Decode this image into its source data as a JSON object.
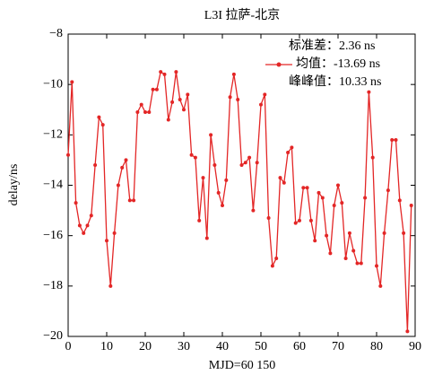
{
  "chart_data": {
    "type": "line",
    "title": "L3I 拉萨-北京",
    "x_label": "MJD=60 150",
    "y_label": "delay/ns",
    "annotations": [
      "标准差：2.36 ns",
      "均值：-13.69 ns",
      "峰峰值：10.33 ns"
    ],
    "x": [
      0,
      1,
      2,
      3,
      4,
      5,
      6,
      7,
      8,
      9,
      10,
      11,
      12,
      13,
      14,
      15,
      16,
      17,
      18,
      19,
      20,
      21,
      22,
      23,
      24,
      25,
      26,
      27,
      28,
      29,
      30,
      31,
      32,
      33,
      34,
      35,
      36,
      37,
      38,
      39,
      40,
      41,
      42,
      43,
      44,
      45,
      46,
      47,
      48,
      49,
      50,
      51,
      52,
      53,
      54,
      55,
      56,
      57,
      58,
      59,
      60,
      61,
      62,
      63,
      64,
      65,
      66,
      67,
      68,
      69,
      70,
      71,
      72,
      73,
      74,
      75,
      76,
      77,
      78,
      79,
      80,
      81,
      82,
      83,
      84,
      85,
      86,
      87,
      88,
      89
    ],
    "series": [
      {
        "color": "#e32626",
        "values": [
          -12.8,
          -9.9,
          -14.7,
          -15.6,
          -15.9,
          -15.6,
          -15.2,
          -13.2,
          -11.3,
          -11.6,
          -16.2,
          -18.0,
          -15.9,
          -14.0,
          -13.3,
          -13.0,
          -14.6,
          -14.6,
          -11.1,
          -10.8,
          -11.1,
          -11.1,
          -10.2,
          -10.2,
          -9.5,
          -9.6,
          -11.4,
          -10.7,
          -9.5,
          -10.6,
          -11.0,
          -10.4,
          -12.8,
          -12.9,
          -15.4,
          -13.7,
          -16.1,
          -12.0,
          -13.2,
          -14.3,
          -14.8,
          -13.8,
          -10.5,
          -9.6,
          -10.6,
          -13.2,
          -13.1,
          -12.9,
          -15.0,
          -13.1,
          -10.8,
          -10.4,
          -15.3,
          -17.2,
          -16.9,
          -13.7,
          -13.9,
          -12.7,
          -12.5,
          -15.5,
          -15.4,
          -14.1,
          -14.1,
          -15.4,
          -16.2,
          -14.3,
          -14.5,
          -16.0,
          -16.7,
          -14.8,
          -14.0,
          -14.7,
          -16.9,
          -15.9,
          -16.6,
          -17.1,
          -17.1,
          -14.5,
          -10.3,
          -12.9,
          -17.2,
          -18.0,
          -15.9,
          -14.2,
          -12.2,
          -12.2,
          -14.6,
          -15.9,
          -19.8,
          -14.8
        ]
      }
    ],
    "xlim": [
      0,
      90
    ],
    "xticks": [
      0,
      10,
      20,
      30,
      40,
      50,
      60,
      70,
      80,
      90
    ],
    "ylim": [
      -20,
      -8
    ],
    "yticks": [
      {
        "value": -20,
        "label": "−20"
      },
      {
        "value": -18,
        "label": "−18"
      },
      {
        "value": -16,
        "label": "−16"
      },
      {
        "value": -14,
        "label": "−14"
      },
      {
        "value": -12,
        "label": "−12"
      },
      {
        "value": -10,
        "label": "−10"
      },
      {
        "value": -8,
        "label": "−8"
      }
    ]
  }
}
